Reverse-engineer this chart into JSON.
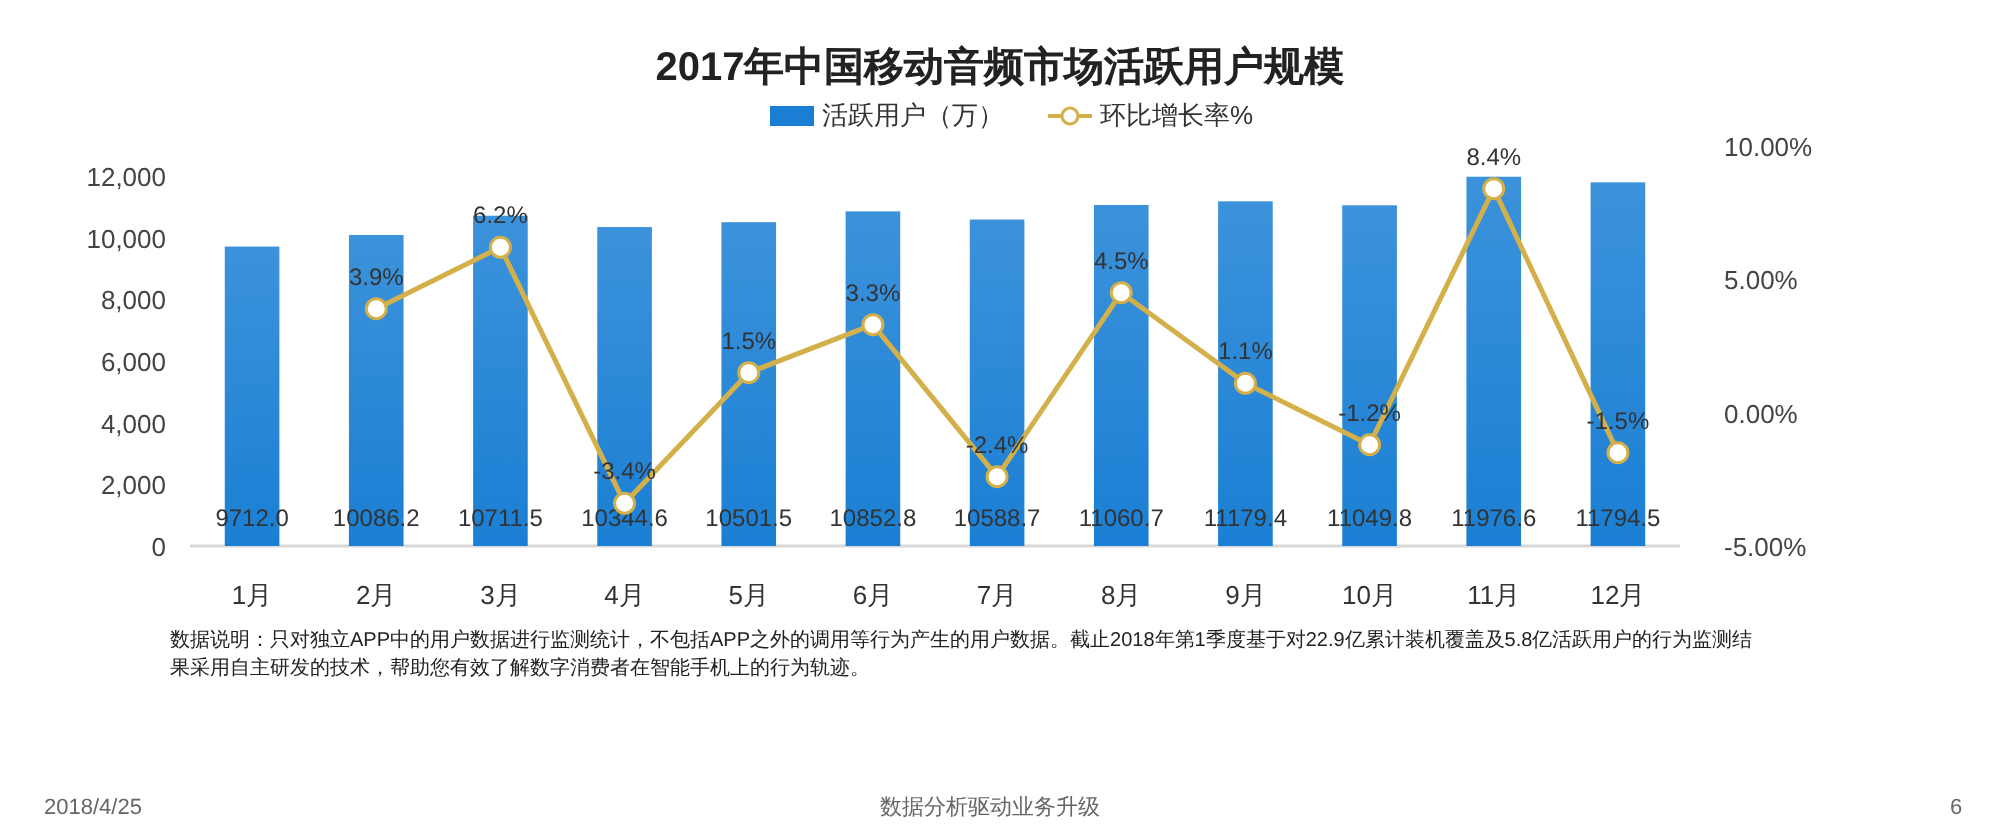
{
  "chart_data": {
    "type": "bar",
    "title": "2017年中国移动音频市场活跃用户规模",
    "categories": [
      "1月",
      "2月",
      "3月",
      "4月",
      "5月",
      "6月",
      "7月",
      "8月",
      "9月",
      "10月",
      "11月",
      "12月"
    ],
    "series": [
      {
        "name": "活跃用户（万）",
        "color": "#1a7fd4",
        "values": [
          9712.0,
          10086.2,
          10711.5,
          10344.6,
          10501.5,
          10852.8,
          10588.7,
          11060.7,
          11179.4,
          11049.8,
          11976.6,
          11794.5
        ],
        "value_labels": [
          "9712.0",
          "10086.2",
          "10711.5",
          "10344.6",
          "10501.5",
          "10852.8",
          "10588.7",
          "11060.7",
          "11179.4",
          "11049.8",
          "11976.6",
          "11794.5"
        ]
      },
      {
        "name": "环比增长率%",
        "type": "line",
        "axis": "y2",
        "color": "#d4b04a",
        "marker": "circle",
        "values": [
          null,
          3.9,
          6.2,
          -3.4,
          1.5,
          3.3,
          -2.4,
          4.5,
          1.1,
          -1.2,
          8.4,
          -1.5
        ],
        "value_labels": [
          null,
          "3.9%",
          "6.2%",
          "-3.4%",
          "1.5%",
          "3.3%",
          "-2.4%",
          "4.5%",
          "1.1%",
          "-1.2%",
          "8.4%",
          "-1.5%"
        ]
      }
    ],
    "ylim": [
      0,
      12000
    ],
    "yticks": [
      0,
      {
        "value": 2000,
        "label": "2,000"
      },
      {
        "value": 4000,
        "label": "4,000"
      },
      {
        "value": 6000,
        "label": "6,000"
      },
      {
        "value": 8000,
        "label": "8,000"
      },
      {
        "value": 10000,
        "label": "10,000"
      },
      {
        "value": 12000,
        "label": "12,000"
      }
    ],
    "y2lim": [
      -5,
      10
    ],
    "y2ticks": [
      {
        "value": -5,
        "label": "-5.00%"
      },
      {
        "value": 0,
        "label": "0.00%"
      },
      {
        "value": 5,
        "label": "5.00%"
      },
      {
        "value": 10,
        "label": "10.00%"
      }
    ],
    "grid": false,
    "legend": "top",
    "annotations": [
      "数据说明：只对独立APP中的用户数据进行监测统计，不包括APP之外的调用等行为产生的用户数据。截止2018年第1季度基于对22.9亿累计装机覆盖及5.8亿活跃用户的行为监测结果采用自主研发的技术，帮助您有效了解数字消费者在智能手机上的行为轨迹。",
      "2018/4/25",
      "数据分析驱动业务升级",
      "6"
    ]
  }
}
